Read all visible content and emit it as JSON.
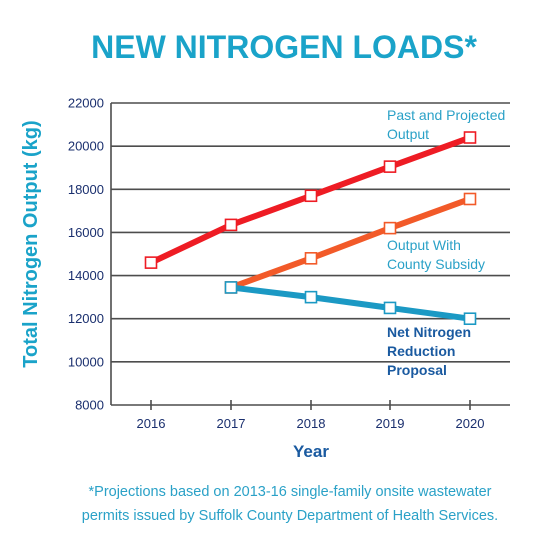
{
  "chart_data": {
    "type": "line",
    "title": "NEW NITROGEN LOADS*",
    "xlabel": "Year",
    "ylabel": "Total Nitrogen Output (kg)",
    "ylim": [
      8000,
      22000
    ],
    "yticks": [
      8000,
      10000,
      12000,
      14000,
      16000,
      18000,
      20000,
      22000
    ],
    "xticks": [
      "2016",
      "2017",
      "2018",
      "2019",
      "2020"
    ],
    "grid": true,
    "series": [
      {
        "name": "Past and Projected Output",
        "label_lines": [
          "Past and Projected",
          "Output"
        ],
        "color": "#ee1c24",
        "x": [
          "2016",
          "2017",
          "2018",
          "2019",
          "2020"
        ],
        "values": [
          14600,
          16350,
          17700,
          19050,
          20400
        ]
      },
      {
        "name": "Output With County Subsidy",
        "label_lines": [
          "Output With",
          "County Subsidy"
        ],
        "color": "#f25a29",
        "x": [
          "2017",
          "2018",
          "2019",
          "2020"
        ],
        "values": [
          13450,
          14800,
          16200,
          17550
        ]
      },
      {
        "name": "Net Nitrogen Reduction Proposal",
        "label_lines": [
          "Net Nitrogen",
          "Reduction",
          "Proposal"
        ],
        "color": "#1b99c4",
        "x": [
          "2017",
          "2018",
          "2019",
          "2020"
        ],
        "values": [
          13450,
          13000,
          12500,
          12000
        ]
      }
    ],
    "footnote": [
      "*Projections based on 2013-16 single-family onsite wastewater",
      "permits issued by Suffolk County Department of Health Services."
    ]
  }
}
